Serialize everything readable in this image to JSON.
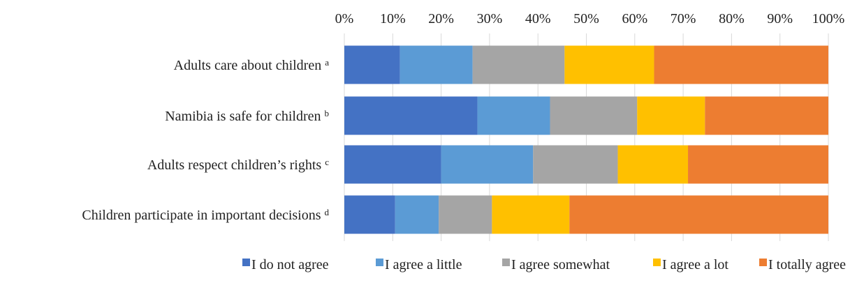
{
  "chart_data": {
    "type": "bar",
    "orientation": "horizontal",
    "stacked": true,
    "percent_stacked": true,
    "xaxis_position": "top",
    "xlim": [
      0,
      100
    ],
    "x_ticks": [
      0,
      10,
      20,
      30,
      40,
      50,
      60,
      70,
      80,
      90,
      100
    ],
    "x_tick_labels": [
      "0%",
      "10%",
      "20%",
      "30%",
      "40%",
      "50%",
      "60%",
      "70%",
      "80%",
      "90%",
      "100%"
    ],
    "grid": true,
    "legend_position": "bottom",
    "categories": [
      {
        "label": "Adults care about children",
        "note": "a"
      },
      {
        "label": "Namibia is safe for children",
        "note": "b"
      },
      {
        "label": "Adults respect children’s rights",
        "note": "c"
      },
      {
        "label": "Children participate in important decisions",
        "note": "d"
      }
    ],
    "series": [
      {
        "name": "I do not agree",
        "color": "#4472C4",
        "values": [
          11.5,
          27.5,
          20.0,
          10.5
        ]
      },
      {
        "name": "I agree a little",
        "color": "#5B9BD5",
        "values": [
          15.0,
          15.0,
          19.0,
          9.0
        ]
      },
      {
        "name": "I agree somewhat",
        "color": "#A5A5A5",
        "values": [
          19.0,
          18.0,
          17.5,
          11.0
        ]
      },
      {
        "name": "I agree a lot",
        "color": "#FFC000",
        "values": [
          18.5,
          14.0,
          14.5,
          16.0
        ]
      },
      {
        "name": "I totally agree",
        "color": "#ED7D31",
        "values": [
          36.0,
          25.5,
          29.0,
          53.5
        ]
      }
    ]
  }
}
